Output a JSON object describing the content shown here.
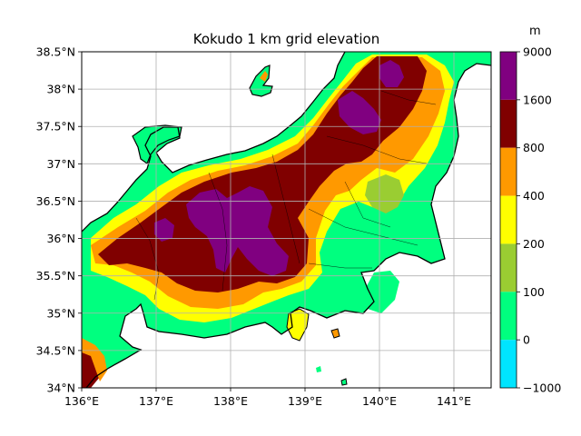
{
  "map": {
    "title": "Kokudo 1 km grid elevation",
    "lon_ticks": [
      {
        "value": 136,
        "label": "136°E"
      },
      {
        "value": 137,
        "label": "137°E"
      },
      {
        "value": 138,
        "label": "138°E"
      },
      {
        "value": 139,
        "label": "139°E"
      },
      {
        "value": 140,
        "label": "140°E"
      },
      {
        "value": 141,
        "label": "141°E"
      }
    ],
    "lat_ticks": [
      {
        "value": 38.5,
        "label": "38.5°N"
      },
      {
        "value": 38.0,
        "label": "38°N"
      },
      {
        "value": 37.5,
        "label": "37.5°N"
      },
      {
        "value": 37.0,
        "label": "37°N"
      },
      {
        "value": 36.5,
        "label": "36.5°N"
      },
      {
        "value": 36.0,
        "label": "36°N"
      },
      {
        "value": 35.5,
        "label": "35.5°N"
      },
      {
        "value": 35.0,
        "label": "35°N"
      },
      {
        "value": 34.5,
        "label": "34.5°N"
      },
      {
        "value": 34.0,
        "label": "34°N"
      }
    ],
    "lon_range": [
      136,
      141.5
    ],
    "lat_range": [
      34,
      38.5
    ],
    "grid": true,
    "sea_color": "#ffffff"
  },
  "colorbar": {
    "unit": "m",
    "levels": [
      {
        "label": "9000",
        "color": "#800080"
      },
      {
        "label": "1600",
        "color": "#800000"
      },
      {
        "label": "800",
        "color": "#ff9900"
      },
      {
        "label": "400",
        "color": "#ffff00"
      },
      {
        "label": "200",
        "color": "#9acd32"
      },
      {
        "label": "100",
        "color": "#00ff7f"
      },
      {
        "label": "0",
        "color": "#00e5ff"
      },
      {
        "label": "−1000",
        "color": null
      }
    ]
  }
}
